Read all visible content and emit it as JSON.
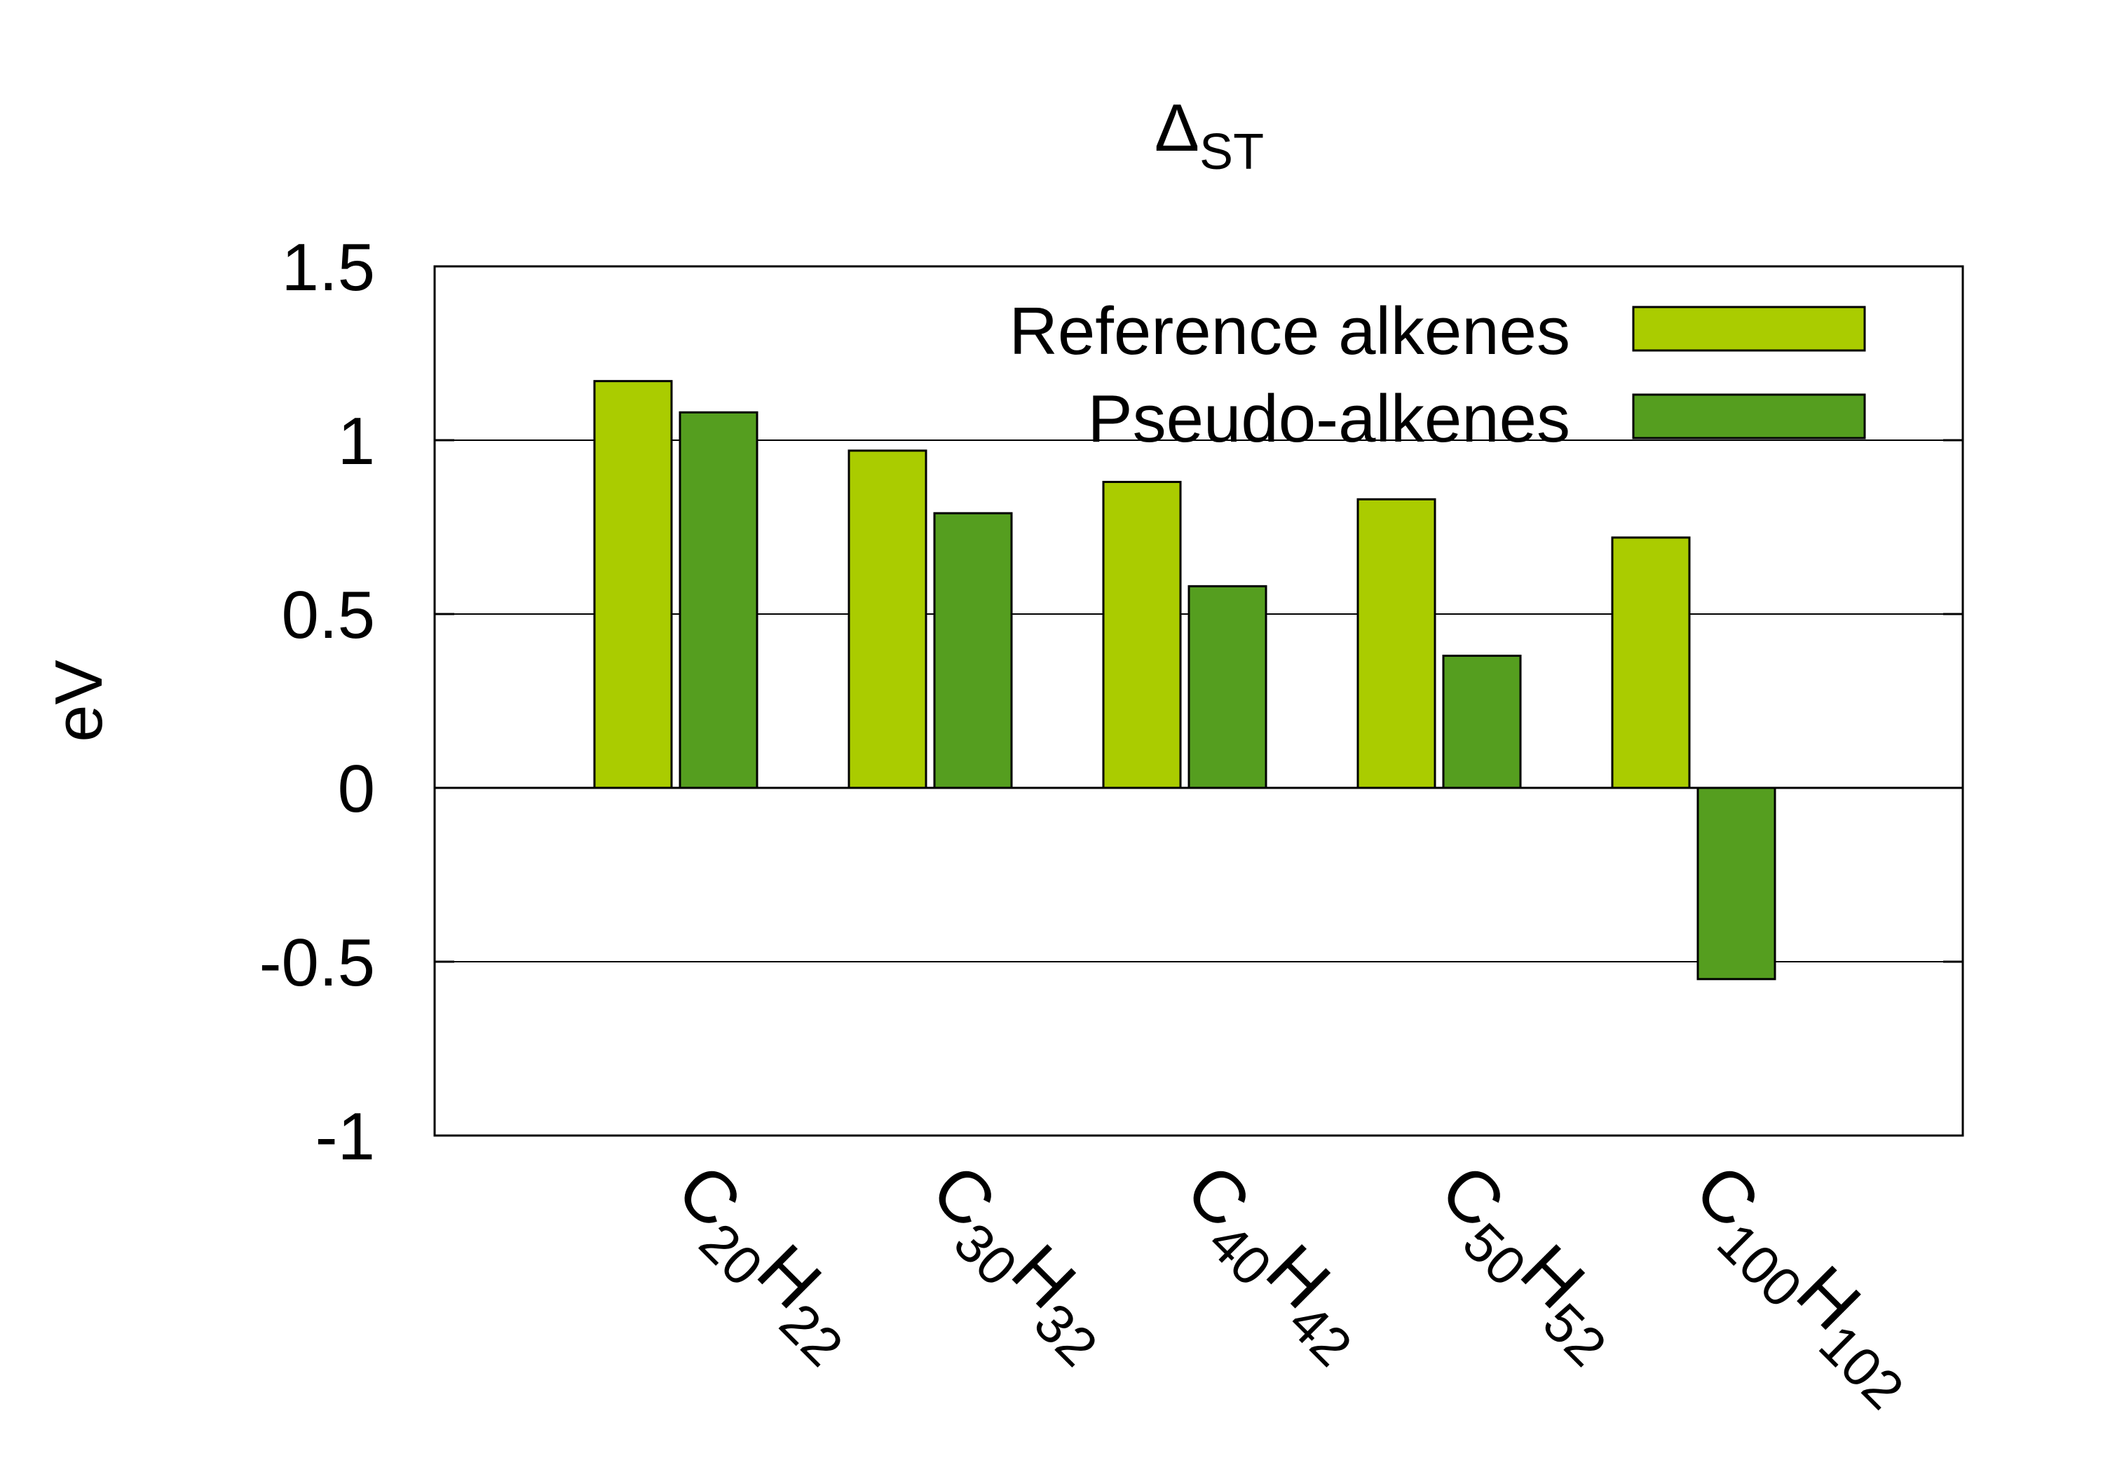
{
  "chart_data": {
    "type": "bar",
    "title": {
      "main": "Δ",
      "sub": "ST"
    },
    "ylabel": "eV",
    "ylim": [
      -1,
      1.5
    ],
    "yticks": [
      -1,
      -0.5,
      0,
      0.5,
      1,
      1.5
    ],
    "ytick_labels": [
      "-1",
      "-0.5",
      "0",
      "0.5",
      "1",
      "1.5"
    ],
    "grid": "horizontal",
    "legend_position": "top-right",
    "categories": [
      {
        "base": "C",
        "n1": "20",
        "mid": "H",
        "n2": "22"
      },
      {
        "base": "C",
        "n1": "30",
        "mid": "H",
        "n2": "32"
      },
      {
        "base": "C",
        "n1": "40",
        "mid": "H",
        "n2": "42"
      },
      {
        "base": "C",
        "n1": "50",
        "mid": "H",
        "n2": "52"
      },
      {
        "base": "C",
        "n1": "100",
        "mid": "H",
        "n2": "102"
      }
    ],
    "series": [
      {
        "name": "Reference alkenes",
        "color": "#AACC00",
        "values": [
          1.17,
          0.97,
          0.88,
          0.83,
          0.72
        ]
      },
      {
        "name": "Pseudo-alkenes",
        "color": "#559E1F",
        "values": [
          1.08,
          0.79,
          0.58,
          0.38,
          -0.55
        ]
      }
    ]
  }
}
